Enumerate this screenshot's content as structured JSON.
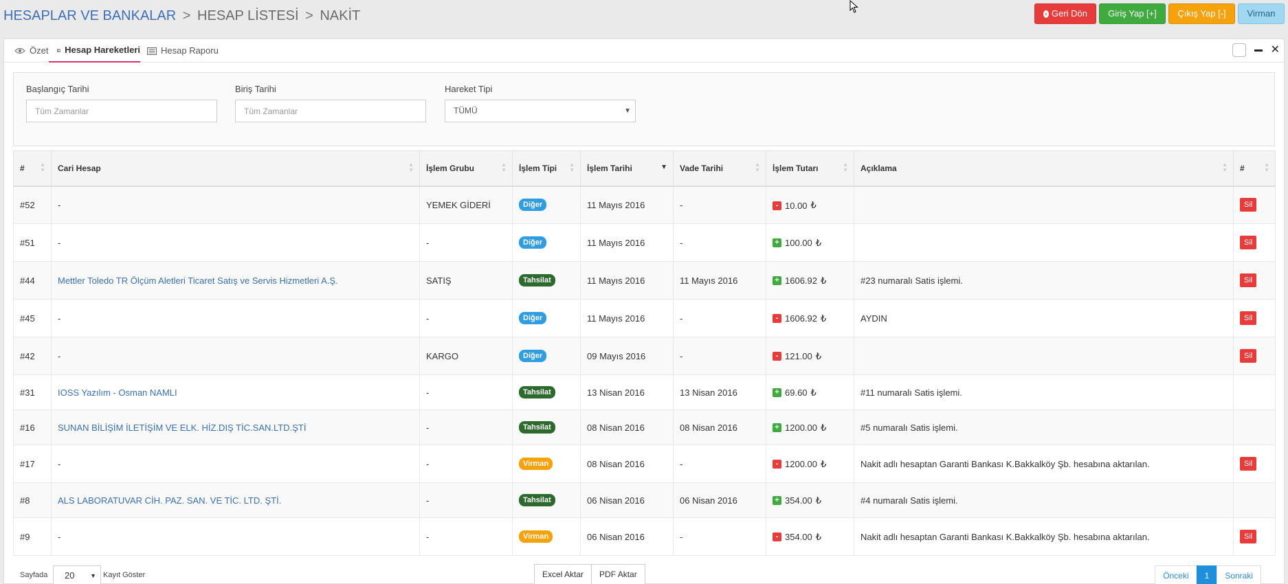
{
  "breadcrumb": {
    "first": "HESAPLAR VE BANKALAR",
    "second": "HESAP LİSTESİ",
    "third": "NAKİT",
    "sep": ">"
  },
  "actions": {
    "back": "Geri Dön",
    "entry": "Giriş Yap [+]",
    "exit": "Çıkış Yap [-]",
    "transfer": "Virman"
  },
  "tabs": {
    "summary": "Özet",
    "movements": "Hesap Hareketleri",
    "report": "Hesap Raporu"
  },
  "filters": {
    "start_label": "Başlangıç Tarihi",
    "start_placeholder": "Tüm Zamanlar",
    "end_label": "Biriş Tarihi",
    "end_placeholder": "Tüm Zamanlar",
    "type_label": "Hareket Tipi",
    "type_value": "TÜMÜ"
  },
  "table": {
    "headers": {
      "id": "#",
      "account": "Cari Hesap",
      "group": "İşlem Grubu",
      "type": "İşlem Tipi",
      "date": "İşlem Tarihi",
      "due": "Vade Tarihi",
      "amount": "İşlem Tutarı",
      "desc": "Açıklama",
      "action": "#"
    },
    "delete_label": "Sil",
    "currency": "₺",
    "rows": [
      {
        "id": "#52",
        "account": "-",
        "group": "YEMEK GİDERİ",
        "type": "Diğer",
        "date": "11 Mayıs 2016",
        "due": "-",
        "sign": "-",
        "amount": "10.00",
        "desc": ""
      },
      {
        "id": "#51",
        "account": "-",
        "group": "-",
        "type": "Diğer",
        "date": "11 Mayıs 2016",
        "due": "-",
        "sign": "+",
        "amount": "100.00",
        "desc": ""
      },
      {
        "id": "#44",
        "account": "Mettler Toledo TR Ölçüm Aletleri Ticaret Satış ve Servis Hizmetleri A.Ş.",
        "group": "SATIŞ",
        "type": "Tahsilat",
        "date": "11 Mayıs 2016",
        "due": "11 Mayıs 2016",
        "sign": "+",
        "amount": "1606.92",
        "desc": "#23 numaralı Satis işlemi."
      },
      {
        "id": "#45",
        "account": "-",
        "group": "-",
        "type": "Diğer",
        "date": "11 Mayıs 2016",
        "due": "-",
        "sign": "-",
        "amount": "1606.92",
        "desc": "AYDIN"
      },
      {
        "id": "#42",
        "account": "-",
        "group": "KARGO",
        "type": "Diğer",
        "date": "09 Mayıs 2016",
        "due": "-",
        "sign": "-",
        "amount": "121.00",
        "desc": ""
      },
      {
        "id": "#31",
        "account": "IOSS Yazılım - Osman NAMLI",
        "group": "-",
        "type": "Tahsilat",
        "date": "13 Nisan 2016",
        "due": "13 Nisan 2016",
        "sign": "+",
        "amount": "69.60",
        "desc": "#11 numaralı Satis işlemi."
      },
      {
        "id": "#16",
        "account": "SUNAN BİLİŞİM İLETİŞİM VE ELK. HİZ.DIŞ TİC.SAN.LTD.ŞTİ",
        "group": "-",
        "type": "Tahsilat",
        "date": "08 Nisan 2016",
        "due": "08 Nisan 2016",
        "sign": "+",
        "amount": "1200.00",
        "desc": "#5 numaralı Satis işlemi."
      },
      {
        "id": "#17",
        "account": "-",
        "group": "-",
        "type": "Virman",
        "date": "08 Nisan 2016",
        "due": "-",
        "sign": "-",
        "amount": "1200.00",
        "desc": "Nakit adlı hesaptan Garanti Bankası K.Bakkalköy Şb. hesabına aktarılan."
      },
      {
        "id": "#8",
        "account": "ALS LABORATUVAR CİH. PAZ. SAN. VE TİC. LTD. ŞTİ.",
        "group": "-",
        "type": "Tahsilat",
        "date": "06 Nisan 2016",
        "due": "06 Nisan 2016",
        "sign": "+",
        "amount": "354.00",
        "desc": "#4 numaralı Satis işlemi."
      },
      {
        "id": "#9",
        "account": "-",
        "group": "-",
        "type": "Virman",
        "date": "06 Nisan 2016",
        "due": "-",
        "sign": "-",
        "amount": "354.00",
        "desc": "Nakit adlı hesaptan Garanti Bankası K.Bakkalköy Şb. hesabına aktarılan."
      }
    ]
  },
  "footer": {
    "per_page_label": "Sayfada",
    "per_page_value": "20",
    "per_page_suffix": "Kayıt Göster",
    "excel": "Excel Aktar",
    "pdf": "PDF Aktar",
    "prev": "Önceki",
    "page": "1",
    "next": "Sonraki"
  },
  "colors": {
    "accent_tab": "#d9306e",
    "danger": "#e63c3c",
    "success": "#3fab3f",
    "warning": "#f5a20c",
    "info": "#9fd8f0"
  }
}
